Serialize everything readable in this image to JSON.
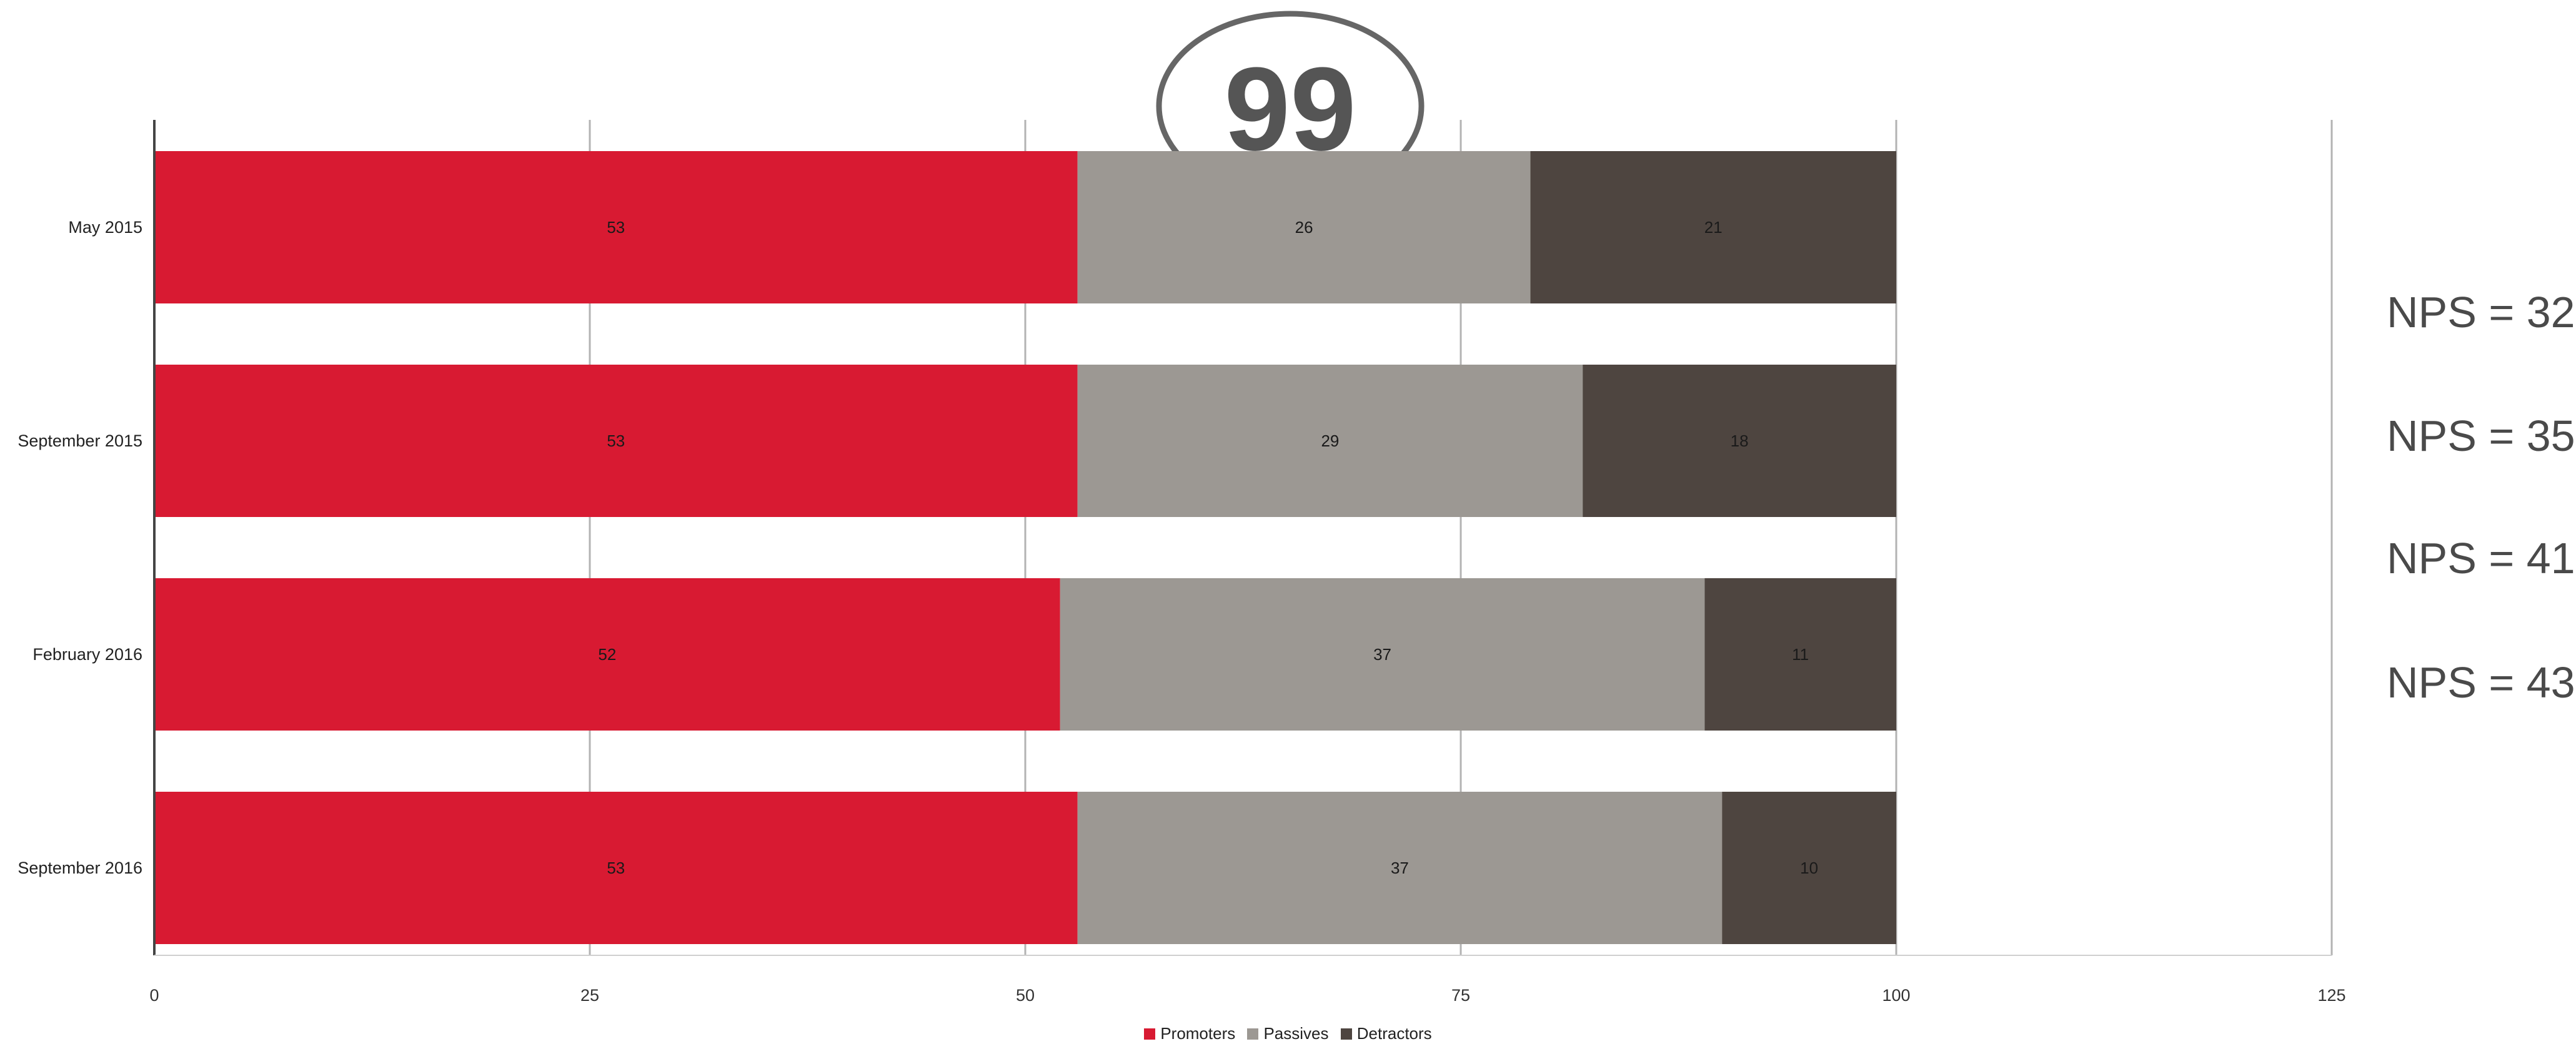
{
  "chart_data": {
    "type": "bar",
    "orientation": "horizontal",
    "stacked": true,
    "title": "",
    "xlabel": "",
    "ylabel": "",
    "xlim": [
      0,
      125
    ],
    "x_ticks": [
      0,
      25,
      50,
      75,
      100,
      125
    ],
    "grid": true,
    "legend_position": "bottom-center",
    "categories": [
      "May 2015",
      "September 2015",
      "February 2016",
      "September 2016"
    ],
    "series": [
      {
        "name": "Promoters",
        "color": "#d81a32",
        "values": [
          53,
          53,
          52,
          53
        ]
      },
      {
        "name": "Passives",
        "color": "#9c9893",
        "values": [
          26,
          29,
          37,
          37
        ]
      },
      {
        "name": "Detractors",
        "color": "#4e4540",
        "values": [
          21,
          18,
          11,
          10
        ]
      }
    ],
    "annotations": [
      "NPS = 32",
      "NPS = 35",
      "NPS = 41",
      "NPS = 43"
    ]
  },
  "watermark": {
    "kind": "quote-logo",
    "text": "99"
  }
}
